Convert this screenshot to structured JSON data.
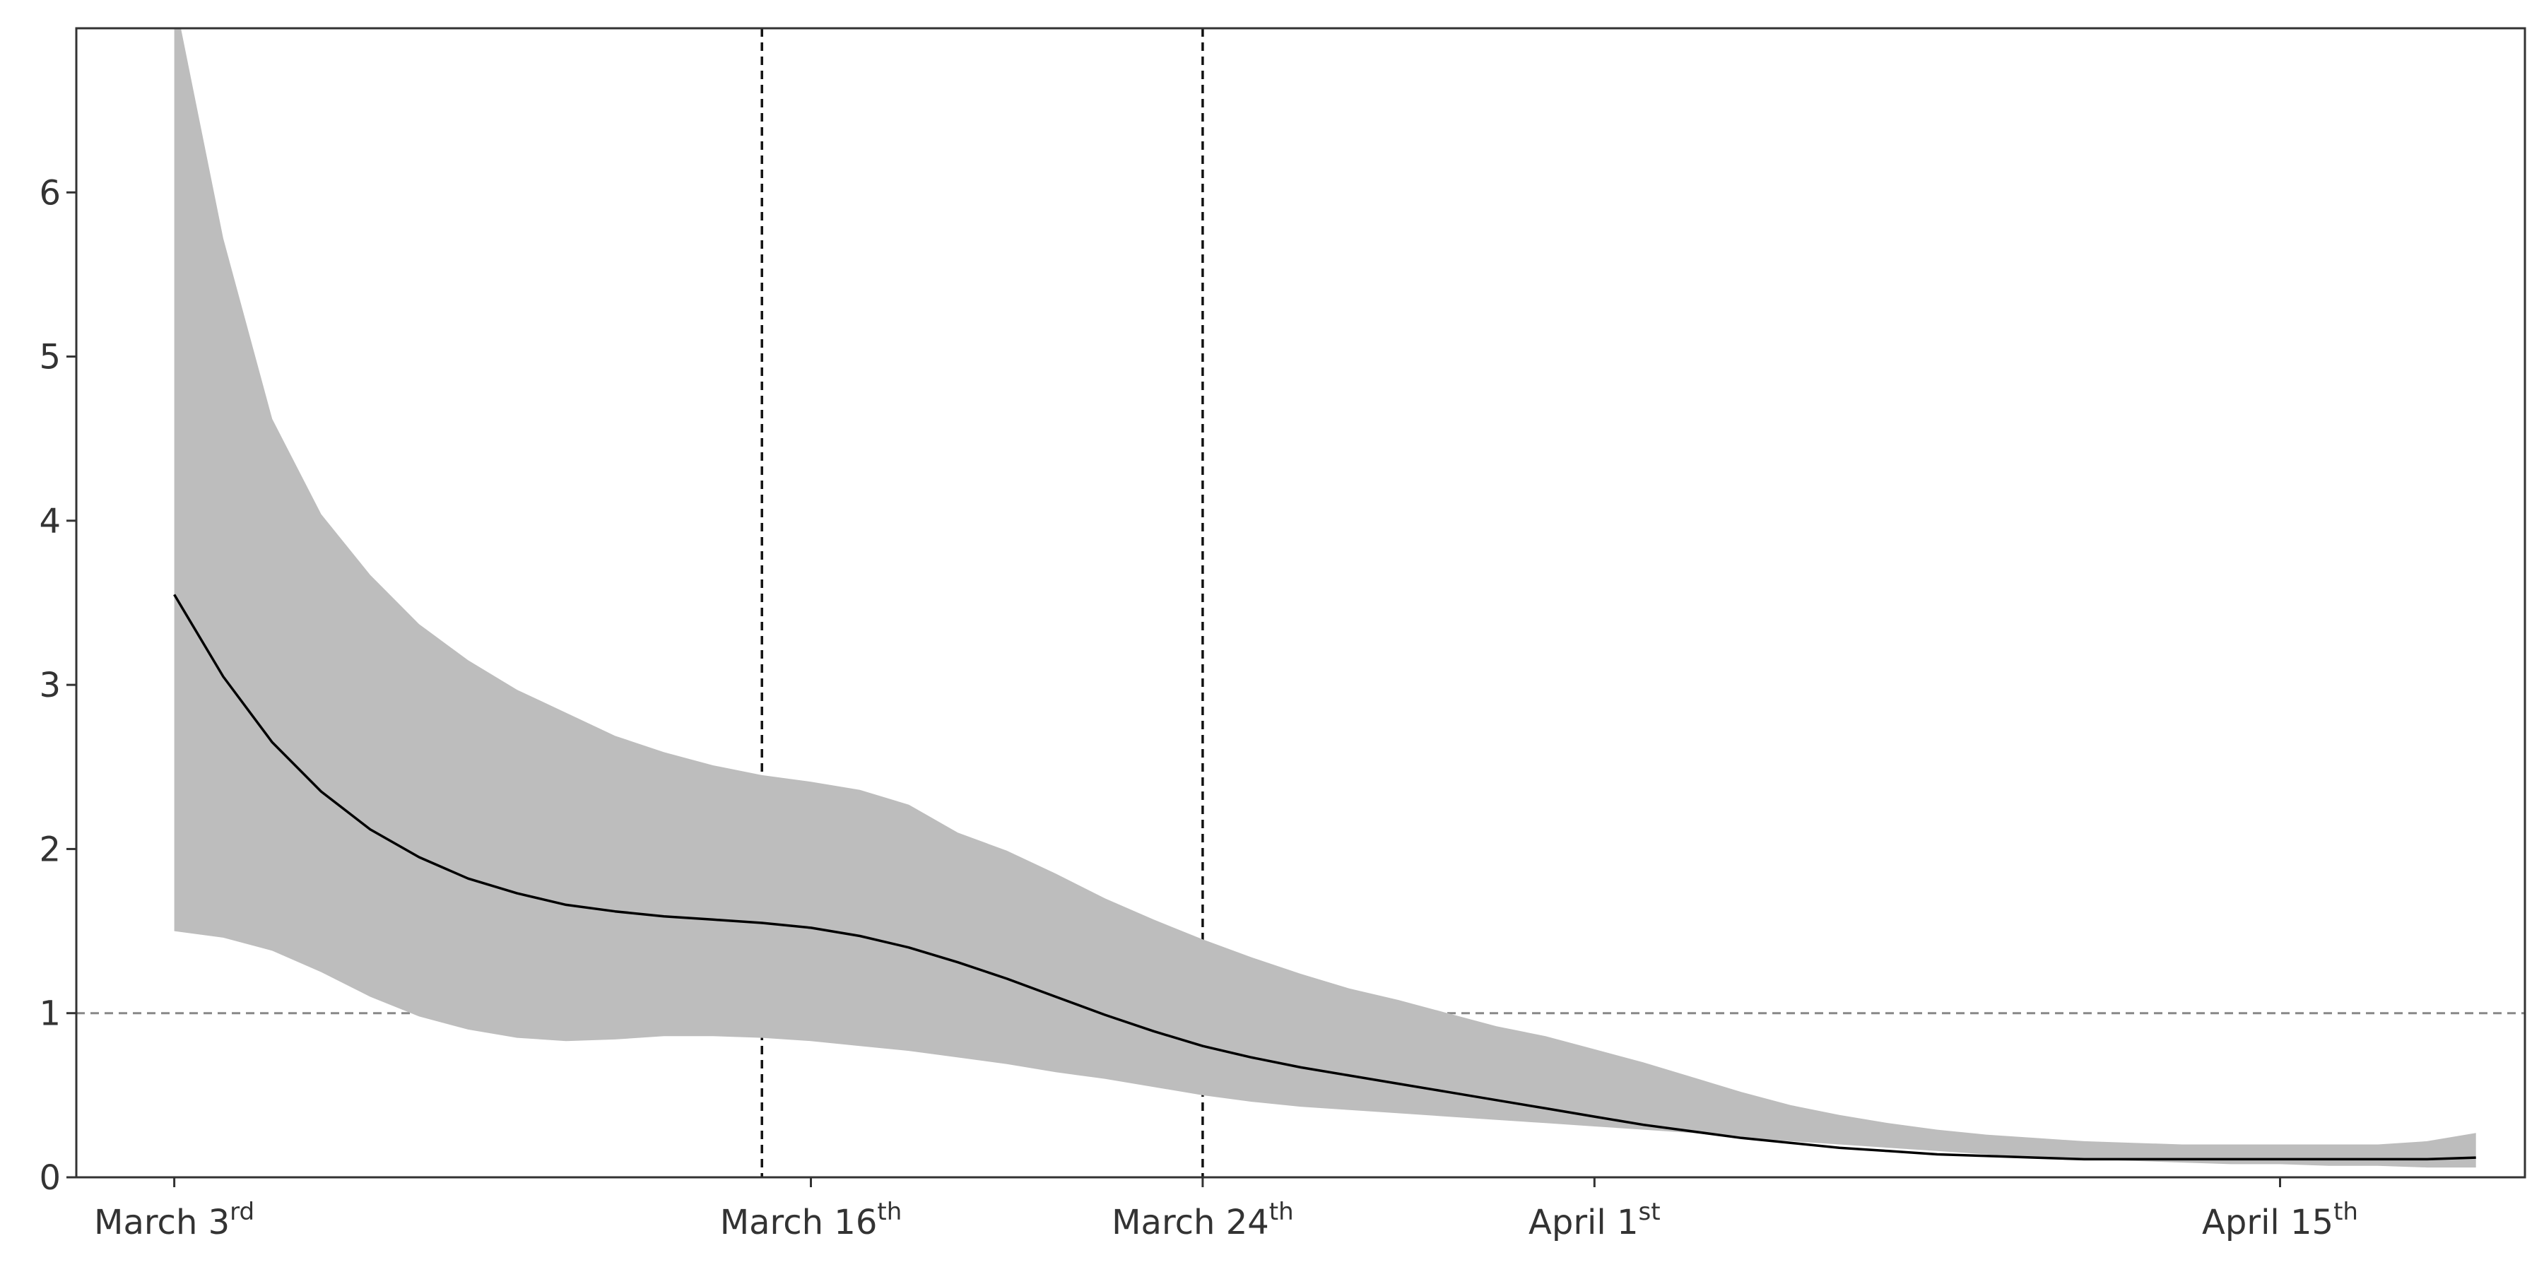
{
  "chart_data": {
    "type": "line",
    "title": "",
    "xlabel": "",
    "ylabel": "",
    "x_start_date": "2020-03-01",
    "xlim": [
      "2020-03-01",
      "2020-04-20"
    ],
    "ylim": [
      0,
      7
    ],
    "grid": false,
    "legend": "none",
    "y_ticks": [
      0,
      1,
      2,
      3,
      4,
      5,
      6
    ],
    "x_ticks": [
      {
        "date": "2020-03-03",
        "label": "March 3",
        "suffix": "rd"
      },
      {
        "date": "2020-03-16",
        "label": "March 16",
        "suffix": "th"
      },
      {
        "date": "2020-03-24",
        "label": "March 24",
        "suffix": "th"
      },
      {
        "date": "2020-04-01",
        "label": "April 1",
        "suffix": "st"
      },
      {
        "date": "2020-04-15",
        "label": "April 15",
        "suffix": "th"
      }
    ],
    "reference_lines": {
      "horizontal": [
        {
          "y": 1.0,
          "style": "dashed",
          "color": "#888888"
        }
      ],
      "vertical": [
        {
          "date": "2020-03-15",
          "style": "dashed",
          "color": "#111111"
        },
        {
          "date": "2020-03-24",
          "style": "dashed",
          "color": "#111111"
        }
      ]
    },
    "series": [
      {
        "color": "#000000",
        "band_color": "#bdbdbd",
        "x": [
          "2020-03-03",
          "2020-03-04",
          "2020-03-05",
          "2020-03-06",
          "2020-03-07",
          "2020-03-08",
          "2020-03-09",
          "2020-03-10",
          "2020-03-11",
          "2020-03-12",
          "2020-03-13",
          "2020-03-14",
          "2020-03-15",
          "2020-03-16",
          "2020-03-17",
          "2020-03-18",
          "2020-03-19",
          "2020-03-20",
          "2020-03-21",
          "2020-03-22",
          "2020-03-23",
          "2020-03-24",
          "2020-03-25",
          "2020-03-26",
          "2020-03-27",
          "2020-03-28",
          "2020-03-29",
          "2020-03-30",
          "2020-03-31",
          "2020-04-01",
          "2020-04-02",
          "2020-04-03",
          "2020-04-04",
          "2020-04-05",
          "2020-04-06",
          "2020-04-07",
          "2020-04-08",
          "2020-04-09",
          "2020-04-10",
          "2020-04-11",
          "2020-04-12",
          "2020-04-13",
          "2020-04-14",
          "2020-04-15",
          "2020-04-16",
          "2020-04-17",
          "2020-04-18",
          "2020-04-19"
        ],
        "values": [
          3.55,
          3.05,
          2.65,
          2.35,
          2.12,
          1.95,
          1.82,
          1.73,
          1.66,
          1.62,
          1.59,
          1.57,
          1.55,
          1.52,
          1.47,
          1.4,
          1.31,
          1.21,
          1.1,
          0.99,
          0.89,
          0.8,
          0.73,
          0.67,
          0.62,
          0.57,
          0.52,
          0.47,
          0.42,
          0.37,
          0.32,
          0.28,
          0.24,
          0.21,
          0.18,
          0.16,
          0.14,
          0.13,
          0.12,
          0.11,
          0.11,
          0.11,
          0.11,
          0.11,
          0.11,
          0.11,
          0.11,
          0.12
        ],
        "lower": [
          1.5,
          1.46,
          1.38,
          1.25,
          1.1,
          0.98,
          0.9,
          0.85,
          0.83,
          0.84,
          0.86,
          0.86,
          0.85,
          0.83,
          0.8,
          0.77,
          0.73,
          0.69,
          0.64,
          0.6,
          0.55,
          0.5,
          0.46,
          0.43,
          0.41,
          0.39,
          0.37,
          0.35,
          0.33,
          0.31,
          0.29,
          0.27,
          0.24,
          0.22,
          0.2,
          0.18,
          0.16,
          0.14,
          0.12,
          0.11,
          0.1,
          0.09,
          0.08,
          0.08,
          0.07,
          0.07,
          0.06,
          0.06
        ],
        "upper": [
          7.2,
          5.72,
          4.62,
          4.04,
          3.67,
          3.37,
          3.15,
          2.97,
          2.83,
          2.69,
          2.59,
          2.51,
          2.45,
          2.41,
          2.36,
          2.27,
          2.1,
          1.99,
          1.85,
          1.7,
          1.57,
          1.45,
          1.34,
          1.24,
          1.15,
          1.08,
          1.0,
          0.92,
          0.86,
          0.78,
          0.7,
          0.61,
          0.52,
          0.44,
          0.38,
          0.33,
          0.29,
          0.26,
          0.24,
          0.22,
          0.21,
          0.2,
          0.2,
          0.2,
          0.2,
          0.2,
          0.22,
          0.27
        ]
      }
    ]
  }
}
